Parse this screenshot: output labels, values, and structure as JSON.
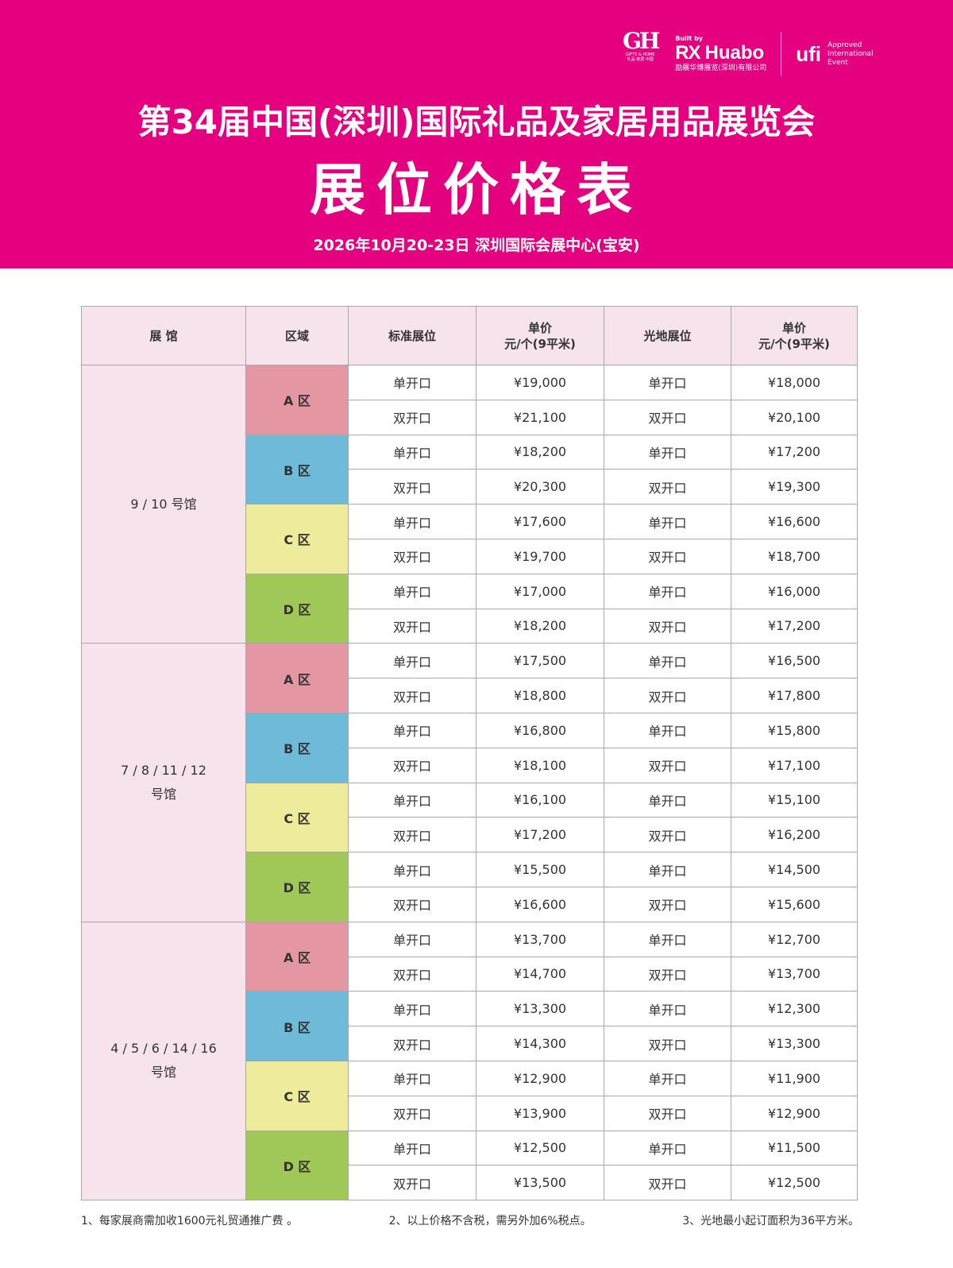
{
  "header": {
    "logos": {
      "gh_mark": "GH",
      "gh_text_en": "GIFTS & HOME",
      "gh_text_cn": "礼品·家居·中国",
      "built_by": "Built by",
      "rx_mark": "RX",
      "rx_name": "Huabo",
      "rx_company_cn": "励展华博展览(深圳)有限公司",
      "ufi_mark": "ufi",
      "ufi_text": "Approved International Event"
    },
    "event_title": "第34届中国(深圳)国际礼品及家居用品展览会",
    "doc_title": "展位价格表",
    "date_venue": "2026年10月20-23日   深圳国际会展中心(宝安)"
  },
  "colors": {
    "header_bg": "#e4007f",
    "header_cell_bg": "#f6e3ec",
    "zone_A": "#e497a3",
    "zone_B": "#6dbad9",
    "zone_C": "#eeeb9a",
    "zone_D": "#9fc856"
  },
  "table": {
    "headers": [
      "展    馆",
      "区域",
      "标准展位",
      "单价\n元/个(9平米)",
      "光地展位",
      "单价\n元/个(9平米)"
    ],
    "groups": [
      {
        "hall": "9 / 10  号馆",
        "zones": [
          {
            "zone": "A 区",
            "color_key": "A",
            "rows": [
              {
                "std_type": "单开口",
                "std_price": "¥19,000",
                "raw_type": "单开口",
                "raw_price": "¥18,000"
              },
              {
                "std_type": "双开口",
                "std_price": "¥21,100",
                "raw_type": "双开口",
                "raw_price": "¥20,100"
              }
            ]
          },
          {
            "zone": "B 区",
            "color_key": "B",
            "rows": [
              {
                "std_type": "单开口",
                "std_price": "¥18,200",
                "raw_type": "单开口",
                "raw_price": "¥17,200"
              },
              {
                "std_type": "双开口",
                "std_price": "¥20,300",
                "raw_type": "双开口",
                "raw_price": "¥19,300"
              }
            ]
          },
          {
            "zone": "C 区",
            "color_key": "C",
            "rows": [
              {
                "std_type": "单开口",
                "std_price": "¥17,600",
                "raw_type": "单开口",
                "raw_price": "¥16,600"
              },
              {
                "std_type": "双开口",
                "std_price": "¥19,700",
                "raw_type": "双开口",
                "raw_price": "¥18,700"
              }
            ]
          },
          {
            "zone": "D 区",
            "color_key": "D",
            "rows": [
              {
                "std_type": "单开口",
                "std_price": "¥17,000",
                "raw_type": "单开口",
                "raw_price": "¥16,000"
              },
              {
                "std_type": "双开口",
                "std_price": "¥18,200",
                "raw_type": "双开口",
                "raw_price": "¥17,200"
              }
            ]
          }
        ]
      },
      {
        "hall": "7 / 8 / 11 / 12\n号馆",
        "zones": [
          {
            "zone": "A 区",
            "color_key": "A",
            "rows": [
              {
                "std_type": "单开口",
                "std_price": "¥17,500",
                "raw_type": "单开口",
                "raw_price": "¥16,500"
              },
              {
                "std_type": "双开口",
                "std_price": "¥18,800",
                "raw_type": "双开口",
                "raw_price": "¥17,800"
              }
            ]
          },
          {
            "zone": "B 区",
            "color_key": "B",
            "rows": [
              {
                "std_type": "单开口",
                "std_price": "¥16,800",
                "raw_type": "单开口",
                "raw_price": "¥15,800"
              },
              {
                "std_type": "双开口",
                "std_price": "¥18,100",
                "raw_type": "双开口",
                "raw_price": "¥17,100"
              }
            ]
          },
          {
            "zone": "C 区",
            "color_key": "C",
            "rows": [
              {
                "std_type": "单开口",
                "std_price": "¥16,100",
                "raw_type": "单开口",
                "raw_price": "¥15,100"
              },
              {
                "std_type": "双开口",
                "std_price": "¥17,200",
                "raw_type": "双开口",
                "raw_price": "¥16,200"
              }
            ]
          },
          {
            "zone": "D 区",
            "color_key": "D",
            "rows": [
              {
                "std_type": "单开口",
                "std_price": "¥15,500",
                "raw_type": "单开口",
                "raw_price": "¥14,500"
              },
              {
                "std_type": "双开口",
                "std_price": "¥16,600",
                "raw_type": "双开口",
                "raw_price": "¥15,600"
              }
            ]
          }
        ]
      },
      {
        "hall": "4 / 5 / 6 / 14 / 16\n号馆",
        "zones": [
          {
            "zone": "A 区",
            "color_key": "A",
            "rows": [
              {
                "std_type": "单开口",
                "std_price": "¥13,700",
                "raw_type": "单开口",
                "raw_price": "¥12,700"
              },
              {
                "std_type": "双开口",
                "std_price": "¥14,700",
                "raw_type": "双开口",
                "raw_price": "¥13,700"
              }
            ]
          },
          {
            "zone": "B 区",
            "color_key": "B",
            "rows": [
              {
                "std_type": "单开口",
                "std_price": "¥13,300",
                "raw_type": "单开口",
                "raw_price": "¥12,300"
              },
              {
                "std_type": "双开口",
                "std_price": "¥14,300",
                "raw_type": "双开口",
                "raw_price": "¥13,300"
              }
            ]
          },
          {
            "zone": "C 区",
            "color_key": "C",
            "rows": [
              {
                "std_type": "单开口",
                "std_price": "¥12,900",
                "raw_type": "单开口",
                "raw_price": "¥11,900"
              },
              {
                "std_type": "双开口",
                "std_price": "¥13,900",
                "raw_type": "双开口",
                "raw_price": "¥12,900"
              }
            ]
          },
          {
            "zone": "D 区",
            "color_key": "D",
            "rows": [
              {
                "std_type": "单开口",
                "std_price": "¥12,500",
                "raw_type": "单开口",
                "raw_price": "¥11,500"
              },
              {
                "std_type": "双开口",
                "std_price": "¥13,500",
                "raw_type": "双开口",
                "raw_price": "¥12,500"
              }
            ]
          }
        ]
      }
    ]
  },
  "notes": [
    "1、每家展商需加收1600元礼贸通推广费 。",
    "2、以上价格不含税，需另外加6%税点。",
    "3、光地最小起订面积为36平方米。"
  ]
}
